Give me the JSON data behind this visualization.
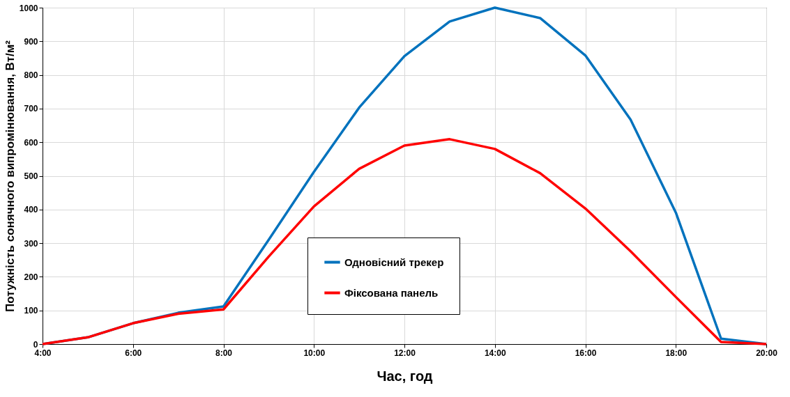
{
  "chart_data": {
    "type": "line",
    "xlabel": "Час, год",
    "ylabel": "Потужність сонячного випромінювання, Вт/м²",
    "xlim": [
      4,
      20
    ],
    "ylim": [
      0,
      1000
    ],
    "xticks": [
      {
        "value": 4,
        "label": "4:00"
      },
      {
        "value": 6,
        "label": "6:00"
      },
      {
        "value": 8,
        "label": "8:00"
      },
      {
        "value": 10,
        "label": "10:00"
      },
      {
        "value": 12,
        "label": "12:00"
      },
      {
        "value": 14,
        "label": "14:00"
      },
      {
        "value": 16,
        "label": "16:00"
      },
      {
        "value": 18,
        "label": "18:00"
      },
      {
        "value": 20,
        "label": "20:00"
      }
    ],
    "yticks": [
      0,
      100,
      200,
      300,
      400,
      500,
      600,
      700,
      800,
      900,
      1000
    ],
    "grid": true,
    "legend": "center",
    "marker": "none",
    "line_style": "solid",
    "series": [
      {
        "name": "Одновісний трекер",
        "color": "#0072bd",
        "x": [
          4,
          5,
          6,
          7,
          8,
          9,
          10,
          11,
          12,
          13,
          14,
          15,
          16,
          17,
          18,
          19,
          20
        ],
        "values": [
          0,
          20,
          62,
          93,
          112,
          310,
          512,
          703,
          856,
          959,
          1000,
          969,
          858,
          667,
          391,
          16,
          0
        ]
      },
      {
        "name": "Фіксована панель",
        "color": "#ff0000",
        "x": [
          4,
          5,
          6,
          7,
          8,
          9,
          10,
          11,
          12,
          13,
          14,
          15,
          16,
          17,
          18,
          19,
          20
        ],
        "values": [
          0,
          20,
          62,
          90,
          103,
          260,
          409,
          521,
          590,
          609,
          580,
          508,
          403,
          276,
          140,
          6,
          0
        ]
      }
    ]
  }
}
